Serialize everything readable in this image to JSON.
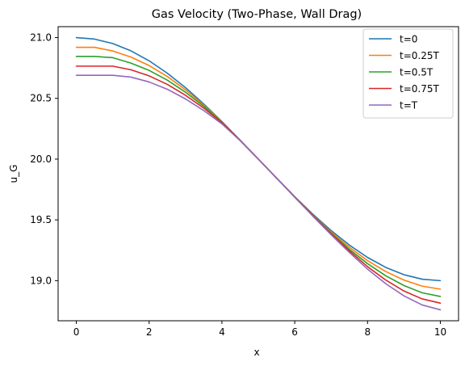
{
  "chart_data": {
    "type": "line",
    "title": "Gas Velocity (Two-Phase, Wall Drag)",
    "xlabel": "x",
    "ylabel": "u_G",
    "xlim": [
      -0.5,
      10.5
    ],
    "ylim": [
      18.67,
      21.09
    ],
    "xticks": [
      0,
      2,
      4,
      6,
      8,
      10
    ],
    "yticks": [
      19.0,
      19.5,
      20.0,
      20.5,
      21.0
    ],
    "xtick_labels": [
      "0",
      "2",
      "4",
      "6",
      "8",
      "10"
    ],
    "ytick_labels": [
      "19.0",
      "19.5",
      "20.0",
      "20.5",
      "21.0"
    ],
    "grid": false,
    "legend_position": "top-right",
    "x": [
      0,
      0.5,
      1,
      1.5,
      2,
      2.5,
      3,
      3.5,
      4,
      4.5,
      5,
      5.5,
      6,
      6.5,
      7,
      7.5,
      8,
      8.5,
      9,
      9.5,
      10
    ],
    "series": [
      {
        "name": "t=0",
        "color": "#1f77b4",
        "values": [
          21.0,
          20.988,
          20.951,
          20.891,
          20.809,
          20.707,
          20.588,
          20.454,
          20.309,
          20.156,
          20.0,
          19.844,
          19.691,
          19.546,
          19.412,
          19.293,
          19.191,
          19.109,
          19.049,
          19.012,
          19.0
        ]
      },
      {
        "name": "t=0.25T",
        "color": "#ff7f0e",
        "values": [
          20.92,
          20.92,
          20.89,
          20.84,
          20.77,
          20.68,
          20.57,
          20.445,
          20.305,
          20.155,
          20.0,
          19.845,
          19.69,
          19.54,
          19.4,
          19.275,
          19.165,
          19.075,
          19.005,
          18.955,
          18.93
        ]
      },
      {
        "name": "t=0.5T",
        "color": "#2ca02c",
        "values": [
          20.845,
          20.845,
          20.835,
          20.79,
          20.73,
          20.65,
          20.55,
          20.435,
          20.302,
          20.155,
          20.0,
          19.845,
          19.69,
          19.538,
          19.392,
          19.258,
          19.14,
          19.04,
          18.96,
          18.9,
          18.87
        ]
      },
      {
        "name": "t=0.75T",
        "color": "#d62728",
        "values": [
          20.765,
          20.765,
          20.765,
          20.735,
          20.685,
          20.615,
          20.525,
          20.42,
          20.3,
          20.153,
          20.0,
          19.845,
          19.688,
          19.535,
          19.385,
          19.245,
          19.115,
          19.005,
          18.915,
          18.85,
          18.815
        ]
      },
      {
        "name": "t=T",
        "color": "#9467bd",
        "values": [
          20.69,
          20.69,
          20.69,
          20.675,
          20.635,
          20.575,
          20.495,
          20.4,
          20.29,
          20.152,
          20.0,
          19.845,
          19.686,
          19.53,
          19.378,
          19.232,
          19.095,
          18.975,
          18.875,
          18.8,
          18.76
        ]
      }
    ]
  }
}
